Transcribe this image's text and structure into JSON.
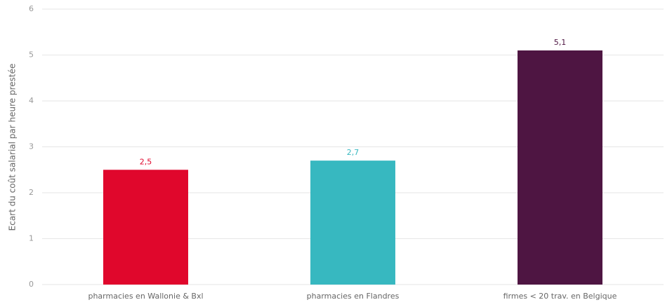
{
  "chart_data": {
    "type": "bar",
    "y_label": "Ecart du coût salarial par heure prestée",
    "categories": [
      "pharmacies en Wallonie & Bxl",
      "pharmacies en Flandres",
      "firmes < 20 trav. en Belgique"
    ],
    "values": [
      2.5,
      2.7,
      5.1
    ],
    "value_labels": [
      "2,5",
      "2,7",
      "5,1"
    ],
    "colors": [
      "#e0072c",
      "#37b8c0",
      "#4e1542"
    ],
    "ylim": [
      0,
      6
    ],
    "yticks": [
      0,
      1,
      2,
      3,
      4,
      5,
      6
    ],
    "grid": true
  }
}
